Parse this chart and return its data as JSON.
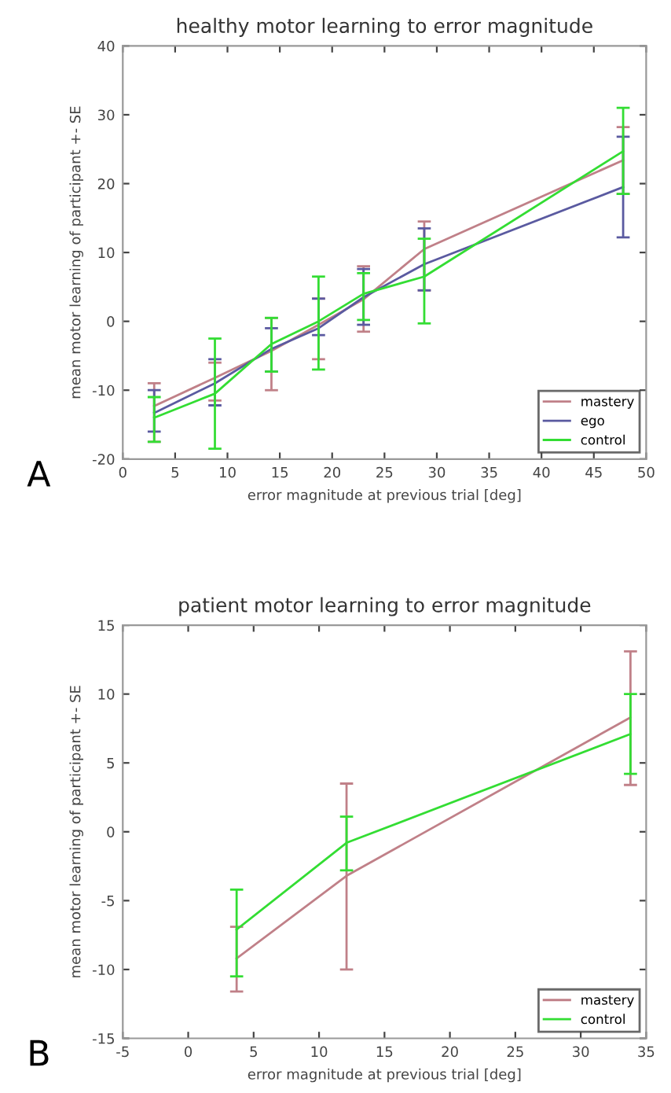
{
  "chart_data": [
    {
      "type": "line",
      "title": "healthy motor learning to error magnitude",
      "xlabel": "error magnitude at previous trial [deg]",
      "ylabel": "mean motor learning of participant +- SE",
      "xlim": [
        0,
        50
      ],
      "xticks": [
        0,
        5,
        10,
        15,
        20,
        25,
        30,
        35,
        40,
        45,
        50
      ],
      "ylim": [
        -20,
        40
      ],
      "yticks": [
        -20,
        -10,
        0,
        10,
        20,
        30,
        40
      ],
      "grid": false,
      "legend": "bottom right",
      "annotations": [
        "A"
      ],
      "series": [
        {
          "name": "mastery",
          "color": "#c08088",
          "x": [
            3,
            8.8,
            14.2,
            18.7,
            23,
            28.8,
            47.8
          ],
          "values": [
            -12.3,
            -8.2,
            -4.3,
            -0.5,
            3.2,
            10.5,
            23.4
          ],
          "errors": [
            [
              -17.5,
              -9
            ],
            [
              -11.5,
              -6
            ],
            [
              -10,
              0.5
            ],
            [
              -5.5,
              3.3
            ],
            [
              -1.5,
              8
            ],
            [
              4.5,
              14.5
            ],
            [
              18.5,
              28.2
            ]
          ]
        },
        {
          "name": "ego",
          "color": "#5a5aa0",
          "x": [
            3,
            8.8,
            14.2,
            18.7,
            23,
            28.8,
            47.8
          ],
          "values": [
            -13.3,
            -9,
            -4,
            -1,
            3.5,
            8.3,
            19.5
          ],
          "errors": [
            [
              -16,
              -10
            ],
            [
              -12.2,
              -5.5
            ],
            [
              -7.3,
              -1
            ],
            [
              -2,
              3.3
            ],
            [
              -0.5,
              7.6
            ],
            [
              4.5,
              13.5
            ],
            [
              12.2,
              26.8
            ]
          ]
        },
        {
          "name": "control",
          "color": "#33dd33",
          "x": [
            3,
            8.8,
            14.2,
            18.7,
            23,
            28.8,
            47.8
          ],
          "values": [
            -14,
            -10.5,
            -3.3,
            0,
            4,
            6.5,
            24.7
          ],
          "errors": [
            [
              -17.5,
              -11
            ],
            [
              -18.5,
              -2.5
            ],
            [
              -7.3,
              0.5
            ],
            [
              -7,
              6.5
            ],
            [
              0.2,
              7
            ],
            [
              -0.3,
              12
            ],
            [
              18.5,
              31
            ]
          ]
        }
      ]
    },
    {
      "type": "line",
      "title": "patient motor learning to error magnitude",
      "xlabel": "error magnitude at previous trial [deg]",
      "ylabel": "mean motor learning of participant +- SE",
      "xlim": [
        -5,
        35
      ],
      "xticks": [
        -5,
        0,
        5,
        10,
        15,
        20,
        25,
        30,
        35
      ],
      "ylim": [
        -15,
        15
      ],
      "yticks": [
        -15,
        -10,
        -5,
        0,
        5,
        10,
        15
      ],
      "grid": false,
      "legend": "bottom right",
      "annotations": [
        "B"
      ],
      "series": [
        {
          "name": "mastery",
          "color": "#c08088",
          "x": [
            3.7,
            12.1,
            33.8
          ],
          "values": [
            -9.2,
            -3.2,
            8.3
          ],
          "errors": [
            [
              -11.6,
              -6.9
            ],
            [
              -10,
              3.5
            ],
            [
              3.4,
              13.1
            ]
          ]
        },
        {
          "name": "control",
          "color": "#33dd33",
          "x": [
            3.7,
            12.1,
            33.8
          ],
          "values": [
            -7.1,
            -0.8,
            7.1
          ],
          "errors": [
            [
              -10.5,
              -4.2
            ],
            [
              -2.8,
              1.1
            ],
            [
              4.2,
              10
            ]
          ]
        }
      ]
    }
  ]
}
